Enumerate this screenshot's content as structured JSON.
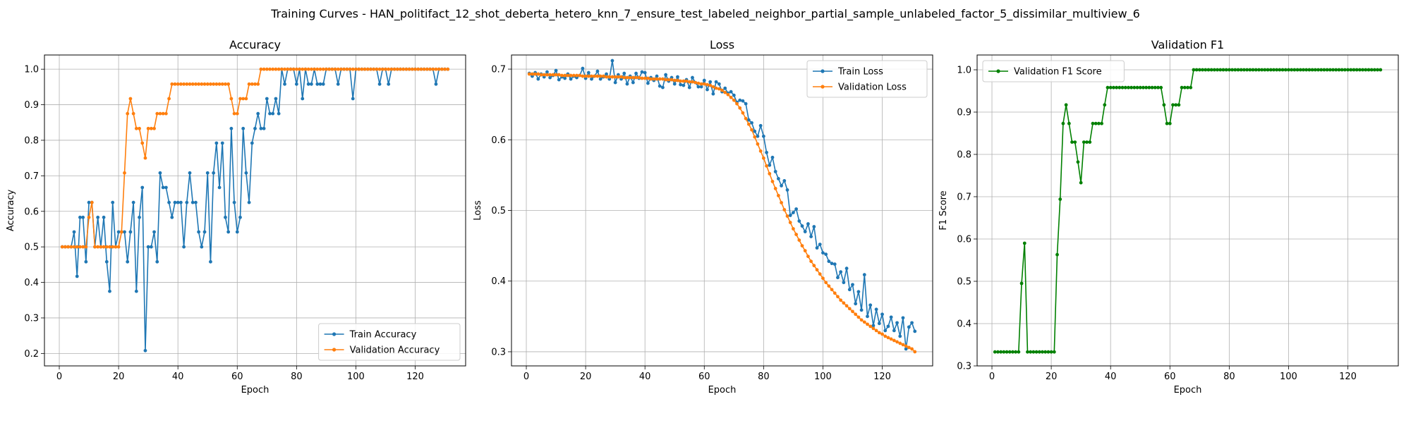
{
  "figure_title": "Training Curves - HAN_politifact_12_shot_deberta_hetero_knn_7_ensure_test_labeled_neighbor_partial_sample_unlabeled_factor_5_dissimilar_multiview_6",
  "colors": {
    "train": "#1f77b4",
    "validation": "#ff7f0e",
    "f1": "#008000",
    "grid": "#b0b0b0"
  },
  "chart_data": [
    {
      "type": "line",
      "title": "Accuracy",
      "xlabel": "Epoch",
      "ylabel": "Accuracy",
      "xlim": [
        -5,
        137
      ],
      "ylim": [
        0.165,
        1.04
      ],
      "xticks": [
        0,
        20,
        40,
        60,
        80,
        100,
        120
      ],
      "yticks": [
        0.2,
        0.3,
        0.4,
        0.5,
        0.6,
        0.7,
        0.8,
        0.9,
        1.0
      ],
      "grid": true,
      "legend": "lower-right",
      "x": [
        1,
        2,
        3,
        4,
        5,
        6,
        7,
        8,
        9,
        10,
        11,
        12,
        13,
        14,
        15,
        16,
        17,
        18,
        19,
        20,
        21,
        22,
        23,
        24,
        25,
        26,
        27,
        28,
        29,
        30,
        31,
        32,
        33,
        34,
        35,
        36,
        37,
        38,
        39,
        40,
        41,
        42,
        43,
        44,
        45,
        46,
        47,
        48,
        49,
        50,
        51,
        52,
        53,
        54,
        55,
        56,
        57,
        58,
        59,
        60,
        61,
        62,
        63,
        64,
        65,
        66,
        67,
        68,
        69,
        70,
        71,
        72,
        73,
        74,
        75,
        76,
        77,
        78,
        79,
        80,
        81,
        82,
        83,
        84,
        85,
        86,
        87,
        88,
        89,
        90,
        91,
        92,
        93,
        94,
        95,
        96,
        97,
        98,
        99,
        100,
        101,
        102,
        103,
        104,
        105,
        106,
        107,
        108,
        109,
        110,
        111,
        112,
        113,
        114,
        115,
        116,
        117,
        118,
        119,
        120,
        121,
        122,
        123,
        124,
        125,
        126,
        127,
        128,
        129,
        130,
        131
      ],
      "series": [
        {
          "name": "Train Accuracy",
          "color": "#1f77b4",
          "values": [
            0.5,
            0.5,
            0.5,
            0.5,
            0.542,
            0.417,
            0.583,
            0.583,
            0.458,
            0.625,
            0.625,
            0.5,
            0.583,
            0.5,
            0.583,
            0.458,
            0.375,
            0.625,
            0.5,
            0.542,
            0.542,
            0.542,
            0.458,
            0.542,
            0.625,
            0.375,
            0.583,
            0.667,
            0.208,
            0.5,
            0.5,
            0.542,
            0.458,
            0.708,
            0.667,
            0.667,
            0.625,
            0.583,
            0.625,
            0.625,
            0.625,
            0.5,
            0.625,
            0.708,
            0.625,
            0.625,
            0.542,
            0.5,
            0.542,
            0.708,
            0.458,
            0.708,
            0.792,
            0.667,
            0.792,
            0.583,
            0.542,
            0.833,
            0.625,
            0.542,
            0.583,
            0.833,
            0.708,
            0.625,
            0.792,
            0.833,
            0.875,
            0.833,
            0.833,
            0.917,
            0.875,
            0.875,
            0.917,
            0.875,
            1.0,
            0.958,
            1.0,
            1.0,
            1.0,
            0.958,
            1.0,
            0.917,
            1.0,
            0.958,
            0.958,
            1.0,
            0.958,
            0.958,
            0.958,
            1.0,
            1.0,
            1.0,
            1.0,
            0.958,
            1.0,
            1.0,
            1.0,
            1.0,
            0.917,
            1.0,
            1.0,
            1.0,
            1.0,
            1.0,
            1.0,
            1.0,
            1.0,
            0.958,
            1.0,
            1.0,
            0.958,
            1.0,
            1.0,
            1.0,
            1.0,
            1.0,
            1.0,
            1.0,
            1.0,
            1.0,
            1.0,
            1.0,
            1.0,
            1.0,
            1.0,
            1.0,
            0.958,
            1.0,
            1.0,
            1.0,
            1.0
          ]
        },
        {
          "name": "Validation Accuracy",
          "color": "#ff7f0e",
          "values": [
            0.5,
            0.5,
            0.5,
            0.5,
            0.5,
            0.5,
            0.5,
            0.5,
            0.5,
            0.583,
            0.625,
            0.5,
            0.5,
            0.5,
            0.5,
            0.5,
            0.5,
            0.5,
            0.5,
            0.5,
            0.542,
            0.708,
            0.875,
            0.917,
            0.875,
            0.833,
            0.833,
            0.792,
            0.75,
            0.833,
            0.833,
            0.833,
            0.875,
            0.875,
            0.875,
            0.875,
            0.917,
            0.958,
            0.958,
            0.958,
            0.958,
            0.958,
            0.958,
            0.958,
            0.958,
            0.958,
            0.958,
            0.958,
            0.958,
            0.958,
            0.958,
            0.958,
            0.958,
            0.958,
            0.958,
            0.958,
            0.958,
            0.917,
            0.875,
            0.875,
            0.917,
            0.917,
            0.917,
            0.958,
            0.958,
            0.958,
            0.958,
            1.0,
            1.0,
            1.0,
            1.0,
            1.0,
            1.0,
            1.0,
            1.0,
            1.0,
            1.0,
            1.0,
            1.0,
            1.0,
            1.0,
            1.0,
            1.0,
            1.0,
            1.0,
            1.0,
            1.0,
            1.0,
            1.0,
            1.0,
            1.0,
            1.0,
            1.0,
            1.0,
            1.0,
            1.0,
            1.0,
            1.0,
            1.0,
            1.0,
            1.0,
            1.0,
            1.0,
            1.0,
            1.0,
            1.0,
            1.0,
            1.0,
            1.0,
            1.0,
            1.0,
            1.0,
            1.0,
            1.0,
            1.0,
            1.0,
            1.0,
            1.0,
            1.0,
            1.0,
            1.0,
            1.0,
            1.0,
            1.0,
            1.0,
            1.0,
            1.0,
            1.0,
            1.0,
            1.0,
            1.0
          ]
        }
      ]
    },
    {
      "type": "line",
      "title": "Loss",
      "xlabel": "Epoch",
      "ylabel": "Loss",
      "xlim": [
        -5,
        137
      ],
      "ylim": [
        0.28,
        0.72
      ],
      "xticks": [
        0,
        20,
        40,
        60,
        80,
        100,
        120
      ],
      "yticks": [
        0.3,
        0.4,
        0.5,
        0.6,
        0.7
      ],
      "grid": true,
      "legend": "top-right",
      "x": [
        1,
        2,
        3,
        4,
        5,
        6,
        7,
        8,
        9,
        10,
        11,
        12,
        13,
        14,
        15,
        16,
        17,
        18,
        19,
        20,
        21,
        22,
        23,
        24,
        25,
        26,
        27,
        28,
        29,
        30,
        31,
        32,
        33,
        34,
        35,
        36,
        37,
        38,
        39,
        40,
        41,
        42,
        43,
        44,
        45,
        46,
        47,
        48,
        49,
        50,
        51,
        52,
        53,
        54,
        55,
        56,
        57,
        58,
        59,
        60,
        61,
        62,
        63,
        64,
        65,
        66,
        67,
        68,
        69,
        70,
        71,
        72,
        73,
        74,
        75,
        76,
        77,
        78,
        79,
        80,
        81,
        82,
        83,
        84,
        85,
        86,
        87,
        88,
        89,
        90,
        91,
        92,
        93,
        94,
        95,
        96,
        97,
        98,
        99,
        100,
        101,
        102,
        103,
        104,
        105,
        106,
        107,
        108,
        109,
        110,
        111,
        112,
        113,
        114,
        115,
        116,
        117,
        118,
        119,
        120,
        121,
        122,
        123,
        124,
        125,
        126,
        127,
        128,
        129,
        130,
        131
      ],
      "series": [
        {
          "name": "Train Loss",
          "color": "#1f77b4",
          "values": [
            0.694,
            0.69,
            0.695,
            0.686,
            0.693,
            0.689,
            0.696,
            0.688,
            0.691,
            0.698,
            0.685,
            0.689,
            0.687,
            0.693,
            0.686,
            0.69,
            0.688,
            0.691,
            0.701,
            0.687,
            0.695,
            0.686,
            0.69,
            0.697,
            0.686,
            0.689,
            0.693,
            0.686,
            0.712,
            0.681,
            0.692,
            0.686,
            0.694,
            0.679,
            0.69,
            0.681,
            0.694,
            0.687,
            0.696,
            0.695,
            0.68,
            0.688,
            0.684,
            0.69,
            0.676,
            0.674,
            0.692,
            0.683,
            0.688,
            0.679,
            0.689,
            0.678,
            0.677,
            0.685,
            0.674,
            0.688,
            0.681,
            0.675,
            0.675,
            0.684,
            0.671,
            0.682,
            0.665,
            0.682,
            0.679,
            0.668,
            0.673,
            0.666,
            0.668,
            0.663,
            0.653,
            0.656,
            0.655,
            0.651,
            0.628,
            0.624,
            0.612,
            0.605,
            0.62,
            0.605,
            0.582,
            0.564,
            0.575,
            0.555,
            0.545,
            0.535,
            0.542,
            0.529,
            0.493,
            0.497,
            0.502,
            0.485,
            0.478,
            0.47,
            0.481,
            0.463,
            0.477,
            0.447,
            0.452,
            0.44,
            0.438,
            0.428,
            0.425,
            0.424,
            0.405,
            0.413,
            0.398,
            0.418,
            0.388,
            0.395,
            0.368,
            0.385,
            0.359,
            0.409,
            0.35,
            0.366,
            0.337,
            0.36,
            0.34,
            0.353,
            0.33,
            0.336,
            0.349,
            0.33,
            0.341,
            0.322,
            0.348,
            0.304,
            0.335,
            0.341,
            0.329
          ]
        },
        {
          "name": "Validation Loss",
          "color": "#ff7f0e",
          "values": [
            0.693,
            0.693,
            0.693,
            0.693,
            0.692,
            0.692,
            0.692,
            0.692,
            0.692,
            0.692,
            0.692,
            0.691,
            0.691,
            0.691,
            0.691,
            0.691,
            0.691,
            0.691,
            0.69,
            0.69,
            0.69,
            0.69,
            0.69,
            0.69,
            0.69,
            0.69,
            0.689,
            0.689,
            0.689,
            0.689,
            0.689,
            0.689,
            0.688,
            0.688,
            0.688,
            0.688,
            0.688,
            0.688,
            0.687,
            0.687,
            0.687,
            0.686,
            0.686,
            0.686,
            0.686,
            0.686,
            0.685,
            0.685,
            0.685,
            0.684,
            0.684,
            0.683,
            0.683,
            0.683,
            0.682,
            0.682,
            0.681,
            0.68,
            0.679,
            0.679,
            0.678,
            0.677,
            0.675,
            0.673,
            0.672,
            0.67,
            0.667,
            0.664,
            0.66,
            0.656,
            0.651,
            0.645,
            0.638,
            0.63,
            0.622,
            0.614,
            0.604,
            0.594,
            0.584,
            0.574,
            0.563,
            0.552,
            0.541,
            0.531,
            0.521,
            0.511,
            0.501,
            0.492,
            0.483,
            0.474,
            0.466,
            0.458,
            0.45,
            0.443,
            0.435,
            0.428,
            0.422,
            0.416,
            0.41,
            0.404,
            0.398,
            0.393,
            0.388,
            0.383,
            0.378,
            0.373,
            0.369,
            0.365,
            0.361,
            0.357,
            0.353,
            0.349,
            0.345,
            0.342,
            0.339,
            0.336,
            0.333,
            0.33,
            0.327,
            0.325,
            0.322,
            0.32,
            0.318,
            0.316,
            0.314,
            0.312,
            0.31,
            0.308,
            0.306,
            0.304,
            0.3
          ]
        }
      ]
    },
    {
      "type": "line",
      "title": "Validation F1",
      "xlabel": "Epoch",
      "ylabel": "F1 Score",
      "xlim": [
        -5,
        137
      ],
      "ylim": [
        0.3,
        1.035
      ],
      "xticks": [
        0,
        20,
        40,
        60,
        80,
        100,
        120
      ],
      "yticks": [
        0.3,
        0.4,
        0.5,
        0.6,
        0.7,
        0.8,
        0.9,
        1.0
      ],
      "grid": true,
      "legend": "top-left",
      "x": [
        1,
        2,
        3,
        4,
        5,
        6,
        7,
        8,
        9,
        10,
        11,
        12,
        13,
        14,
        15,
        16,
        17,
        18,
        19,
        20,
        21,
        22,
        23,
        24,
        25,
        26,
        27,
        28,
        29,
        30,
        31,
        32,
        33,
        34,
        35,
        36,
        37,
        38,
        39,
        40,
        41,
        42,
        43,
        44,
        45,
        46,
        47,
        48,
        49,
        50,
        51,
        52,
        53,
        54,
        55,
        56,
        57,
        58,
        59,
        60,
        61,
        62,
        63,
        64,
        65,
        66,
        67,
        68,
        69,
        70,
        71,
        72,
        73,
        74,
        75,
        76,
        77,
        78,
        79,
        80,
        81,
        82,
        83,
        84,
        85,
        86,
        87,
        88,
        89,
        90,
        91,
        92,
        93,
        94,
        95,
        96,
        97,
        98,
        99,
        100,
        101,
        102,
        103,
        104,
        105,
        106,
        107,
        108,
        109,
        110,
        111,
        112,
        113,
        114,
        115,
        116,
        117,
        118,
        119,
        120,
        121,
        122,
        123,
        124,
        125,
        126,
        127,
        128,
        129,
        130,
        131
      ],
      "series": [
        {
          "name": "Validation F1 Score",
          "color": "#008000",
          "values": [
            0.333,
            0.333,
            0.333,
            0.333,
            0.333,
            0.333,
            0.333,
            0.333,
            0.333,
            0.495,
            0.59,
            0.333,
            0.333,
            0.333,
            0.333,
            0.333,
            0.333,
            0.333,
            0.333,
            0.333,
            0.333,
            0.563,
            0.694,
            0.873,
            0.917,
            0.873,
            0.829,
            0.829,
            0.782,
            0.733,
            0.829,
            0.829,
            0.829,
            0.873,
            0.873,
            0.873,
            0.873,
            0.917,
            0.958,
            0.958,
            0.958,
            0.958,
            0.958,
            0.958,
            0.958,
            0.958,
            0.958,
            0.958,
            0.958,
            0.958,
            0.958,
            0.958,
            0.958,
            0.958,
            0.958,
            0.958,
            0.958,
            0.917,
            0.873,
            0.873,
            0.917,
            0.917,
            0.917,
            0.958,
            0.958,
            0.958,
            0.958,
            1.0,
            1.0,
            1.0,
            1.0,
            1.0,
            1.0,
            1.0,
            1.0,
            1.0,
            1.0,
            1.0,
            1.0,
            1.0,
            1.0,
            1.0,
            1.0,
            1.0,
            1.0,
            1.0,
            1.0,
            1.0,
            1.0,
            1.0,
            1.0,
            1.0,
            1.0,
            1.0,
            1.0,
            1.0,
            1.0,
            1.0,
            1.0,
            1.0,
            1.0,
            1.0,
            1.0,
            1.0,
            1.0,
            1.0,
            1.0,
            1.0,
            1.0,
            1.0,
            1.0,
            1.0,
            1.0,
            1.0,
            1.0,
            1.0,
            1.0,
            1.0,
            1.0,
            1.0,
            1.0,
            1.0,
            1.0,
            1.0,
            1.0,
            1.0,
            1.0,
            1.0,
            1.0,
            1.0,
            1.0
          ]
        }
      ]
    }
  ]
}
